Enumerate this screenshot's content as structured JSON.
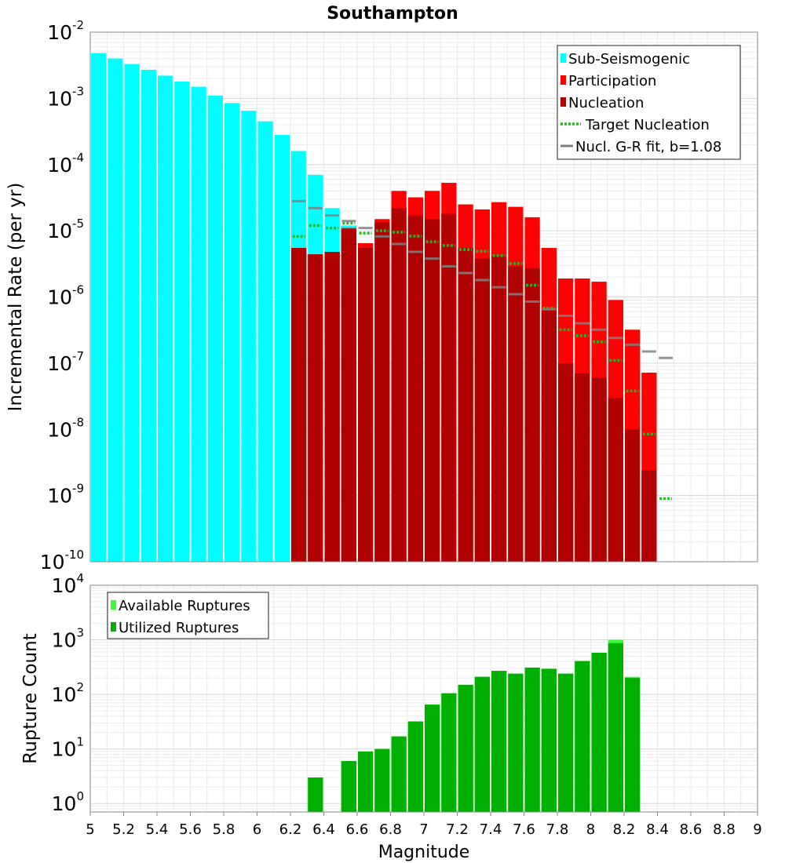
{
  "title": "Southampton",
  "colors": {
    "sub_seismogenic": "#00ffff",
    "participation": "#ff0000",
    "nucleation": "#b00000",
    "target_nucleation": "#22b822",
    "gr_fit": "#808080",
    "available": "#33ff33",
    "utilized": "#00b000"
  },
  "chart_data": [
    {
      "type": "bar",
      "title": "Southampton",
      "xlabel": "",
      "ylabel": "Incremental Rate (per yr)",
      "yscale": "log",
      "xlim": [
        5,
        9
      ],
      "ylim": [
        1e-10,
        0.01
      ],
      "ytick_labels": [
        {
          "base": "10",
          "exp": "-10"
        },
        {
          "base": "10",
          "exp": "-9"
        },
        {
          "base": "10",
          "exp": "-8"
        },
        {
          "base": "10",
          "exp": "-7"
        },
        {
          "base": "10",
          "exp": "-6"
        },
        {
          "base": "10",
          "exp": "-5"
        },
        {
          "base": "10",
          "exp": "-4"
        },
        {
          "base": "10",
          "exp": "-3"
        },
        {
          "base": "10",
          "exp": "-2"
        }
      ],
      "legend_position": "top-right",
      "legend": [
        {
          "label": "Sub-Seismogenic",
          "kind": "bar",
          "color": "#00ffff"
        },
        {
          "label": "Participation",
          "kind": "bar",
          "color": "#ff0000"
        },
        {
          "label": "Nucleation",
          "kind": "bar",
          "color": "#b00000"
        },
        {
          "label": "Target Nucleation",
          "kind": "dotted",
          "color": "#22b822"
        },
        {
          "label": "Nucl. G-R fit, b=1.08",
          "kind": "line",
          "color": "#808080"
        }
      ],
      "grid": true,
      "series": [
        {
          "name": "Sub-Seismogenic",
          "type": "bar",
          "x": [
            5.05,
            5.15,
            5.25,
            5.35,
            5.45,
            5.55,
            5.65,
            5.75,
            5.85,
            5.95,
            6.05,
            6.15,
            6.25,
            6.35,
            6.45,
            6.55
          ],
          "values": [
            0.0048,
            0.004,
            0.0033,
            0.0027,
            0.0022,
            0.0018,
            0.0015,
            0.0011,
            0.00085,
            0.00065,
            0.00045,
            0.00028,
            0.00016,
            7e-05,
            2.2e-05,
            1.2e-05
          ]
        },
        {
          "name": "Participation",
          "type": "bar",
          "x": [
            6.25,
            6.35,
            6.45,
            6.55,
            6.65,
            6.75,
            6.85,
            6.95,
            7.05,
            7.15,
            7.25,
            7.35,
            7.45,
            7.55,
            7.65,
            7.75,
            7.85,
            7.95,
            8.05,
            8.15,
            8.25,
            8.35
          ],
          "values": [
            5.5e-06,
            4.4e-06,
            4.8e-06,
            1.1e-05,
            6.5e-06,
            1.5e-05,
            4e-05,
            3.2e-05,
            4e-05,
            5.3e-05,
            2.5e-05,
            2.1e-05,
            2.7e-05,
            2.3e-05,
            1.6e-05,
            5.5e-06,
            1.9e-06,
            1.9e-06,
            1.7e-06,
            9e-07,
            3.2e-07,
            7.2e-08
          ]
        },
        {
          "name": "Nucleation",
          "type": "bar",
          "x": [
            6.25,
            6.35,
            6.45,
            6.55,
            6.65,
            6.75,
            6.85,
            6.95,
            7.05,
            7.15,
            7.25,
            7.35,
            7.45,
            7.55,
            7.65,
            7.75,
            7.85,
            7.95,
            8.05,
            8.15,
            8.25,
            8.35
          ],
          "values": [
            5.5e-06,
            4.4e-06,
            4.8e-06,
            1.05e-05,
            5.5e-06,
            1.35e-05,
            2.2e-05,
            1.7e-05,
            1.5e-05,
            1.8e-05,
            5.5e-06,
            3.8e-06,
            4.2e-06,
            2.9e-06,
            2.7e-06,
            6.5e-07,
            1e-07,
            7e-08,
            6e-08,
            3e-08,
            1e-08,
            2.4e-09
          ]
        },
        {
          "name": "Target Nucleation",
          "type": "dotted",
          "x": [
            6.25,
            6.35,
            6.45,
            6.55,
            6.65,
            6.75,
            6.85,
            6.95,
            7.05,
            7.15,
            7.25,
            7.35,
            7.45,
            7.55,
            7.65,
            7.75,
            7.85,
            7.95,
            8.05,
            8.15,
            8.25,
            8.35,
            8.45
          ],
          "values": [
            8.2e-06,
            1.2e-05,
            1.1e-05,
            1.3e-05,
            9.2e-06,
            1e-05,
            9.5e-06,
            8.3e-06,
            6.8e-06,
            6e-06,
            5.2e-06,
            4.9e-06,
            4.2e-06,
            3.2e-06,
            1.5e-06,
            6.8e-07,
            3.2e-07,
            2.6e-07,
            2.1e-07,
            1.1e-07,
            3.8e-08,
            8.5e-09,
            9e-10
          ]
        },
        {
          "name": "Nucl. G-R fit, b=1.08",
          "type": "step",
          "x": [
            6.25,
            6.35,
            6.45,
            6.55,
            6.65,
            6.75,
            6.85,
            6.95,
            7.05,
            7.15,
            7.25,
            7.35,
            7.45,
            7.55,
            7.65,
            7.75,
            7.85,
            7.95,
            8.05,
            8.15,
            8.25,
            8.35,
            8.45
          ],
          "values": [
            2.8e-05,
            2.2e-05,
            1.7e-05,
            1.4e-05,
            1.1e-05,
            8.2e-06,
            6.3e-06,
            4.8e-06,
            3.8e-06,
            2.9e-06,
            2.3e-06,
            1.8e-06,
            1.4e-06,
            1.1e-06,
            8.5e-07,
            6.5e-07,
            5.2e-07,
            4e-07,
            3.2e-07,
            2.4e-07,
            1.9e-07,
            1.5e-07,
            1.2e-07
          ]
        }
      ]
    },
    {
      "type": "bar",
      "xlabel": "Magnitude",
      "ylabel": "Rupture Count",
      "yscale": "log",
      "xlim": [
        5,
        9
      ],
      "ylim": [
        0.7,
        10000
      ],
      "xticks": [
        5,
        5.2,
        5.4,
        5.6,
        5.8,
        6,
        6.2,
        6.4,
        6.6,
        6.8,
        7,
        7.2,
        7.4,
        7.6,
        7.8,
        8,
        8.2,
        8.4,
        8.6,
        8.8,
        9
      ],
      "xtick_labels": [
        "5",
        "5.2",
        "5.4",
        "5.6",
        "5.8",
        "6",
        "6.2",
        "6.4",
        "6.6",
        "6.8",
        "7",
        "7.2",
        "7.4",
        "7.6",
        "7.8",
        "8",
        "8.2",
        "8.4",
        "8.6",
        "8.8",
        "9"
      ],
      "ytick_labels": [
        {
          "base": "10",
          "exp": "0"
        },
        {
          "base": "10",
          "exp": "1"
        },
        {
          "base": "10",
          "exp": "2"
        },
        {
          "base": "10",
          "exp": "3"
        },
        {
          "base": "10",
          "exp": "4"
        }
      ],
      "legend_position": "top-left",
      "legend": [
        {
          "label": "Available Ruptures",
          "kind": "bar",
          "color": "#33ff33"
        },
        {
          "label": "Utilized Ruptures",
          "kind": "bar",
          "color": "#00b000"
        }
      ],
      "grid": true,
      "series": [
        {
          "name": "Available Ruptures",
          "type": "bar",
          "x": [
            6.35,
            6.55,
            6.65,
            6.75,
            6.85,
            6.95,
            7.05,
            7.15,
            7.25,
            7.35,
            7.45,
            7.55,
            7.65,
            7.75,
            7.85,
            7.95,
            8.05,
            8.15,
            8.25
          ],
          "values": [
            3,
            6,
            9,
            10,
            17,
            32,
            65,
            105,
            150,
            210,
            270,
            240,
            310,
            295,
            240,
            410,
            580,
            1000,
            210
          ]
        },
        {
          "name": "Utilized Ruptures",
          "type": "bar",
          "x": [
            6.35,
            6.55,
            6.65,
            6.75,
            6.85,
            6.95,
            7.05,
            7.15,
            7.25,
            7.35,
            7.45,
            7.55,
            7.65,
            7.75,
            7.85,
            7.95,
            8.05,
            8.15,
            8.25
          ],
          "values": [
            3,
            6,
            9,
            10,
            17,
            32,
            65,
            105,
            150,
            210,
            270,
            240,
            310,
            295,
            240,
            410,
            580,
            870,
            200
          ]
        }
      ]
    }
  ]
}
